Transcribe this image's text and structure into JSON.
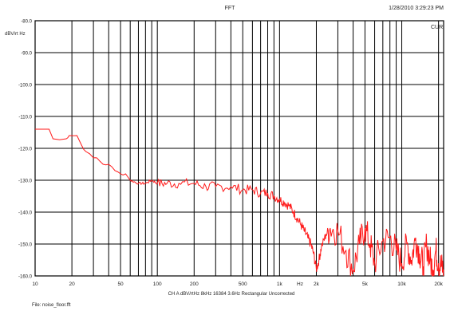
{
  "chart_data": {
    "type": "line",
    "title": "FFT",
    "timestamp": "1/28/2010 3:29:23 PM",
    "ylabel": "dBV/rt Hz",
    "xlabel": "CH A  dBV/rtHz  8kHz  16384  3.6Hz  Rectangular  Uncorrected",
    "xunit": "Hz",
    "footer": "File: noise_floor.fft",
    "corner_label": "CUR",
    "xscale": "log",
    "xlim": [
      10,
      22000
    ],
    "ylim": [
      -160,
      -80
    ],
    "grid": true,
    "x_ticks": [
      {
        "value": 10,
        "label": "10"
      },
      {
        "value": 20,
        "label": "20"
      },
      {
        "value": 50,
        "label": "50"
      },
      {
        "value": 100,
        "label": "100"
      },
      {
        "value": 200,
        "label": "200"
      },
      {
        "value": 500,
        "label": "500"
      },
      {
        "value": 1000,
        "label": "1k"
      },
      {
        "value": 2000,
        "label": "2k"
      },
      {
        "value": 5000,
        "label": "5k"
      },
      {
        "value": 10000,
        "label": "10k"
      },
      {
        "value": 20000,
        "label": "20k"
      }
    ],
    "y_ticks": [
      {
        "value": -80,
        "label": "-80.0"
      },
      {
        "value": -90,
        "label": "-90.0"
      },
      {
        "value": -100,
        "label": "-100.0"
      },
      {
        "value": -110,
        "label": "-110.0"
      },
      {
        "value": -120,
        "label": "-120.0"
      },
      {
        "value": -130,
        "label": "-130.0"
      },
      {
        "value": -140,
        "label": "-140.0"
      },
      {
        "value": -150,
        "label": "-150.0"
      },
      {
        "value": -160,
        "label": "-160.0"
      }
    ],
    "series": [
      {
        "color": "#ff1a1a",
        "x": [
          10,
          13,
          14,
          18,
          19,
          22,
          24,
          26,
          30,
          32,
          36,
          40,
          45,
          50,
          55,
          60,
          70,
          80,
          90,
          100,
          120,
          150,
          200,
          250,
          300,
          400,
          500,
          600,
          700,
          800,
          900,
          1000,
          1100,
          1200,
          1300,
          1400,
          1500,
          1600,
          1700,
          1800,
          1900,
          2000,
          2100,
          2200,
          2400,
          2600,
          3000,
          3500,
          4000,
          4500,
          5000,
          5500,
          6000,
          7000,
          8000,
          9000,
          10000,
          11000,
          12000,
          13000,
          14000,
          15000,
          16000,
          17000,
          18000,
          19000,
          20000,
          21000,
          22000
        ],
        "y": [
          -114,
          -114,
          -117,
          -117,
          -116,
          -116,
          -119,
          -121,
          -123,
          -123,
          -125,
          -125,
          -127,
          -128,
          -128,
          -130,
          -131,
          -131,
          -130,
          -131,
          -131,
          -131,
          -131,
          -132,
          -132,
          -132,
          -133,
          -133,
          -134,
          -134,
          -135,
          -136,
          -137,
          -138,
          -140,
          -142,
          -144,
          -146,
          -148,
          -150,
          -153,
          -158,
          -155,
          -151,
          -147,
          -145,
          -146,
          -152,
          -158,
          -150,
          -145,
          -150,
          -156,
          -149,
          -148,
          -152,
          -156,
          -150,
          -155,
          -148,
          -153,
          -157,
          -150,
          -155,
          -158,
          -152,
          -156,
          -157,
          -158
        ]
      }
    ]
  }
}
